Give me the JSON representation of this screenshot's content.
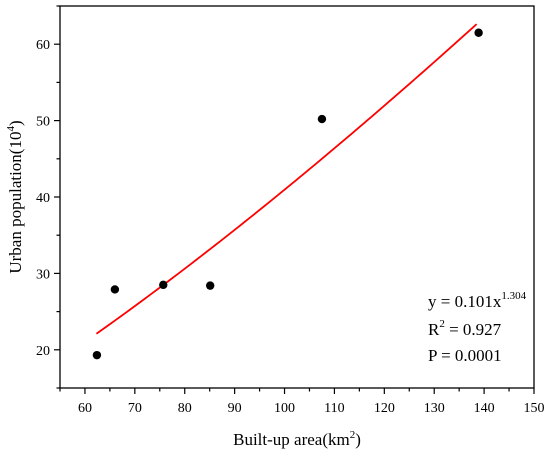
{
  "chart_data": {
    "type": "scatter",
    "xlabel": "Built-up area(km",
    "xlabel_sup": "2",
    "xlabel_end": ")",
    "ylabel": "Urban population(10",
    "ylabel_sup": "4",
    "ylabel_end": ")",
    "xlim": [
      55,
      150
    ],
    "ylim": [
      15,
      65
    ],
    "xticks": [
      "60",
      "70",
      "80",
      "90",
      "100",
      "110",
      "120",
      "130",
      "140",
      "150"
    ],
    "yticks": [
      "20",
      "30",
      "40",
      "50",
      "60"
    ],
    "points": [
      {
        "x": 62.4,
        "y": 19.3
      },
      {
        "x": 66.0,
        "y": 27.9
      },
      {
        "x": 75.7,
        "y": 28.5
      },
      {
        "x": 85.1,
        "y": 28.4
      },
      {
        "x": 107.5,
        "y": 50.2
      },
      {
        "x": 138.9,
        "y": 61.5
      }
    ],
    "fit": {
      "a": 0.101,
      "b": 1.304,
      "x_from": 62.3,
      "x_to": 138.5,
      "color": "#ff0000"
    },
    "point_color": "#000000",
    "annotations": {
      "equation_prefix": "y = 0.101x",
      "equation_sup": "1.304",
      "r2_prefix": "R",
      "r2_sup": "2",
      "r2_suffix": " = 0.927",
      "p_value": "P = 0.0001"
    },
    "grid": false,
    "legend": "none"
  }
}
